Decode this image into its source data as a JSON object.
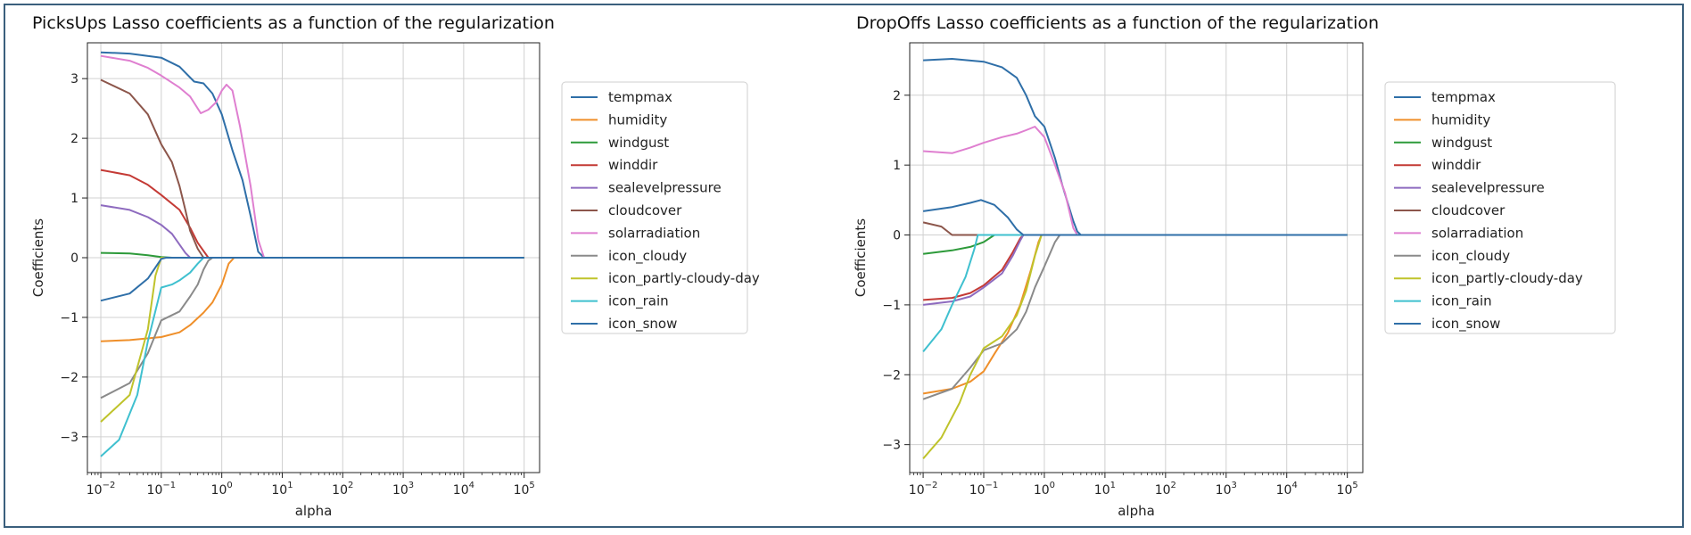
{
  "colors": {
    "tempmax": "#2f6fa8",
    "humidity": "#ef8f2a",
    "windgust": "#2d9a3a",
    "winddir": "#c43a35",
    "sealevelpressure": "#8e6bbf",
    "cloudcover": "#8c564b",
    "solarradiation": "#df7fd0",
    "icon_cloudy": "#8a8a8a",
    "icon_partly-cloudy-day": "#bfc32b",
    "icon_rain": "#3fc0cf",
    "icon_snow": "#2f6fa8"
  },
  "chart_data": [
    {
      "type": "line",
      "title": "PicksUps Lasso coefficients as a function of the regularization",
      "xlabel": "alpha",
      "ylabel": "Coefficients",
      "xscale": "log",
      "xlim": [
        0.006,
        180000
      ],
      "ylim": [
        -3.6,
        3.6
      ],
      "xticks": [
        "10^-2",
        "10^-1",
        "10^0",
        "10^1",
        "10^2",
        "10^3",
        "10^4",
        "10^5"
      ],
      "yticks": [
        -3,
        -2,
        -1,
        0,
        1,
        2,
        3
      ],
      "grid": true,
      "legend_position": "right",
      "legend": [
        "tempmax",
        "humidity",
        "windgust",
        "winddir",
        "sealevelpressure",
        "cloudcover",
        "solarradiation",
        "icon_cloudy",
        "icon_partly-cloudy-day",
        "icon_rain",
        "icon_snow"
      ],
      "series": [
        {
          "name": "tempmax",
          "points": [
            [
              0.01,
              3.44
            ],
            [
              0.03,
              3.42
            ],
            [
              0.1,
              3.35
            ],
            [
              0.2,
              3.2
            ],
            [
              0.35,
              2.95
            ],
            [
              0.5,
              2.92
            ],
            [
              0.7,
              2.75
            ],
            [
              1,
              2.4
            ],
            [
              1.5,
              1.8
            ],
            [
              2.2,
              1.3
            ],
            [
              3,
              0.7
            ],
            [
              4,
              0.1
            ],
            [
              5,
              0
            ],
            [
              100000,
              0
            ]
          ]
        },
        {
          "name": "humidity",
          "points": [
            [
              0.01,
              -1.4
            ],
            [
              0.03,
              -1.38
            ],
            [
              0.1,
              -1.33
            ],
            [
              0.2,
              -1.25
            ],
            [
              0.3,
              -1.13
            ],
            [
              0.5,
              -0.92
            ],
            [
              0.7,
              -0.75
            ],
            [
              1,
              -0.45
            ],
            [
              1.3,
              -0.1
            ],
            [
              1.6,
              0
            ],
            [
              100000,
              0
            ]
          ]
        },
        {
          "name": "windgust",
          "points": [
            [
              0.01,
              0.08
            ],
            [
              0.03,
              0.07
            ],
            [
              0.06,
              0.04
            ],
            [
              0.1,
              0.01
            ],
            [
              0.15,
              0
            ],
            [
              100000,
              0
            ]
          ]
        },
        {
          "name": "winddir",
          "points": [
            [
              0.01,
              1.47
            ],
            [
              0.03,
              1.38
            ],
            [
              0.06,
              1.22
            ],
            [
              0.1,
              1.05
            ],
            [
              0.2,
              0.8
            ],
            [
              0.3,
              0.5
            ],
            [
              0.4,
              0.25
            ],
            [
              0.6,
              0
            ],
            [
              100000,
              0
            ]
          ]
        },
        {
          "name": "sealevelpressure",
          "points": [
            [
              0.01,
              0.88
            ],
            [
              0.03,
              0.8
            ],
            [
              0.06,
              0.68
            ],
            [
              0.1,
              0.55
            ],
            [
              0.15,
              0.4
            ],
            [
              0.25,
              0.08
            ],
            [
              0.3,
              0
            ],
            [
              100000,
              0
            ]
          ]
        },
        {
          "name": "cloudcover",
          "points": [
            [
              0.01,
              2.98
            ],
            [
              0.03,
              2.75
            ],
            [
              0.06,
              2.4
            ],
            [
              0.1,
              1.9
            ],
            [
              0.15,
              1.6
            ],
            [
              0.2,
              1.2
            ],
            [
              0.25,
              0.8
            ],
            [
              0.3,
              0.45
            ],
            [
              0.4,
              0.15
            ],
            [
              0.5,
              0
            ],
            [
              100000,
              0
            ]
          ]
        },
        {
          "name": "solarradiation",
          "points": [
            [
              0.01,
              3.38
            ],
            [
              0.03,
              3.3
            ],
            [
              0.06,
              3.18
            ],
            [
              0.1,
              3.05
            ],
            [
              0.2,
              2.85
            ],
            [
              0.3,
              2.7
            ],
            [
              0.45,
              2.42
            ],
            [
              0.6,
              2.48
            ],
            [
              0.8,
              2.6
            ],
            [
              1,
              2.8
            ],
            [
              1.2,
              2.9
            ],
            [
              1.5,
              2.8
            ],
            [
              2,
              2.2
            ],
            [
              3,
              1.2
            ],
            [
              4,
              0.3
            ],
            [
              5,
              0
            ],
            [
              100000,
              0
            ]
          ]
        },
        {
          "name": "icon_cloudy",
          "points": [
            [
              0.01,
              -2.35
            ],
            [
              0.03,
              -2.1
            ],
            [
              0.06,
              -1.6
            ],
            [
              0.1,
              -1.05
            ],
            [
              0.2,
              -0.9
            ],
            [
              0.3,
              -0.65
            ],
            [
              0.4,
              -0.45
            ],
            [
              0.5,
              -0.2
            ],
            [
              0.6,
              -0.05
            ],
            [
              0.7,
              0
            ],
            [
              100000,
              0
            ]
          ]
        },
        {
          "name": "icon_partly-cloudy-day",
          "points": [
            [
              0.01,
              -2.75
            ],
            [
              0.03,
              -2.3
            ],
            [
              0.06,
              -1.2
            ],
            [
              0.08,
              -0.3
            ],
            [
              0.1,
              0
            ],
            [
              100000,
              0
            ]
          ]
        },
        {
          "name": "icon_rain",
          "points": [
            [
              0.01,
              -3.33
            ],
            [
              0.02,
              -3.05
            ],
            [
              0.04,
              -2.3
            ],
            [
              0.06,
              -1.4
            ],
            [
              0.1,
              -0.5
            ],
            [
              0.15,
              -0.45
            ],
            [
              0.2,
              -0.38
            ],
            [
              0.3,
              -0.25
            ],
            [
              0.4,
              -0.1
            ],
            [
              0.5,
              0
            ],
            [
              100000,
              0
            ]
          ]
        },
        {
          "name": "icon_snow",
          "points": [
            [
              0.01,
              -0.72
            ],
            [
              0.03,
              -0.6
            ],
            [
              0.06,
              -0.35
            ],
            [
              0.1,
              -0.02
            ],
            [
              0.12,
              0
            ],
            [
              100000,
              0
            ]
          ]
        }
      ]
    },
    {
      "type": "line",
      "title": "DropOffs Lasso coefficients as a function of the regularization",
      "xlabel": "alpha",
      "ylabel": "Coefficients",
      "xscale": "log",
      "xlim": [
        0.006,
        180000
      ],
      "ylim": [
        -3.4,
        2.75
      ],
      "xticks": [
        "10^-2",
        "10^-1",
        "10^0",
        "10^1",
        "10^2",
        "10^3",
        "10^4",
        "10^5"
      ],
      "yticks": [
        -3,
        -2,
        -1,
        0,
        1,
        2
      ],
      "grid": true,
      "legend_position": "right",
      "legend": [
        "tempmax",
        "humidity",
        "windgust",
        "winddir",
        "sealevelpressure",
        "cloudcover",
        "solarradiation",
        "icon_cloudy",
        "icon_partly-cloudy-day",
        "icon_rain",
        "icon_snow"
      ],
      "series": [
        {
          "name": "tempmax",
          "points": [
            [
              0.01,
              2.5
            ],
            [
              0.03,
              2.52
            ],
            [
              0.1,
              2.48
            ],
            [
              0.2,
              2.4
            ],
            [
              0.35,
              2.25
            ],
            [
              0.5,
              2.0
            ],
            [
              0.7,
              1.7
            ],
            [
              1,
              1.55
            ],
            [
              1.5,
              1.1
            ],
            [
              2,
              0.7
            ],
            [
              3,
              0.2
            ],
            [
              3.5,
              0.05
            ],
            [
              4,
              0
            ],
            [
              100000,
              0
            ]
          ]
        },
        {
          "name": "humidity",
          "points": [
            [
              0.01,
              -2.27
            ],
            [
              0.03,
              -2.2
            ],
            [
              0.06,
              -2.1
            ],
            [
              0.1,
              -1.95
            ],
            [
              0.15,
              -1.7
            ],
            [
              0.25,
              -1.4
            ],
            [
              0.4,
              -1.0
            ],
            [
              0.6,
              -0.5
            ],
            [
              0.8,
              -0.1
            ],
            [
              0.9,
              0
            ],
            [
              100000,
              0
            ]
          ]
        },
        {
          "name": "windgust",
          "points": [
            [
              0.01,
              -0.27
            ],
            [
              0.03,
              -0.22
            ],
            [
              0.06,
              -0.17
            ],
            [
              0.1,
              -0.1
            ],
            [
              0.15,
              0
            ],
            [
              100000,
              0
            ]
          ]
        },
        {
          "name": "winddir",
          "points": [
            [
              0.01,
              -0.93
            ],
            [
              0.03,
              -0.9
            ],
            [
              0.06,
              -0.83
            ],
            [
              0.1,
              -0.72
            ],
            [
              0.2,
              -0.5
            ],
            [
              0.3,
              -0.25
            ],
            [
              0.4,
              -0.05
            ],
            [
              0.45,
              0
            ],
            [
              100000,
              0
            ]
          ]
        },
        {
          "name": "sealevelpressure",
          "points": [
            [
              0.01,
              -1.0
            ],
            [
              0.03,
              -0.95
            ],
            [
              0.06,
              -0.88
            ],
            [
              0.1,
              -0.75
            ],
            [
              0.2,
              -0.55
            ],
            [
              0.3,
              -0.3
            ],
            [
              0.4,
              -0.08
            ],
            [
              0.45,
              0
            ],
            [
              100000,
              0
            ]
          ]
        },
        {
          "name": "cloudcover",
          "points": [
            [
              0.01,
              0.18
            ],
            [
              0.02,
              0.12
            ],
            [
              0.03,
              0
            ],
            [
              100000,
              0
            ]
          ]
        },
        {
          "name": "solarradiation",
          "points": [
            [
              0.01,
              1.2
            ],
            [
              0.03,
              1.17
            ],
            [
              0.06,
              1.25
            ],
            [
              0.1,
              1.32
            ],
            [
              0.2,
              1.4
            ],
            [
              0.35,
              1.45
            ],
            [
              0.5,
              1.5
            ],
            [
              0.7,
              1.55
            ],
            [
              1,
              1.4
            ],
            [
              1.5,
              1.0
            ],
            [
              2.2,
              0.6
            ],
            [
              3,
              0.1
            ],
            [
              3.5,
              0
            ],
            [
              100000,
              0
            ]
          ]
        },
        {
          "name": "icon_cloudy",
          "points": [
            [
              0.01,
              -2.35
            ],
            [
              0.03,
              -2.2
            ],
            [
              0.06,
              -1.9
            ],
            [
              0.1,
              -1.65
            ],
            [
              0.2,
              -1.55
            ],
            [
              0.35,
              -1.35
            ],
            [
              0.5,
              -1.1
            ],
            [
              0.7,
              -0.75
            ],
            [
              1,
              -0.45
            ],
            [
              1.5,
              -0.1
            ],
            [
              1.8,
              0
            ],
            [
              100000,
              0
            ]
          ]
        },
        {
          "name": "icon_partly-cloudy-day",
          "points": [
            [
              0.01,
              -3.2
            ],
            [
              0.02,
              -2.9
            ],
            [
              0.04,
              -2.4
            ],
            [
              0.06,
              -2.0
            ],
            [
              0.1,
              -1.62
            ],
            [
              0.2,
              -1.45
            ],
            [
              0.35,
              -1.15
            ],
            [
              0.5,
              -0.8
            ],
            [
              0.7,
              -0.3
            ],
            [
              0.9,
              0
            ],
            [
              100000,
              0
            ]
          ]
        },
        {
          "name": "icon_rain",
          "points": [
            [
              0.01,
              -1.67
            ],
            [
              0.02,
              -1.35
            ],
            [
              0.03,
              -1.0
            ],
            [
              0.05,
              -0.6
            ],
            [
              0.07,
              -0.2
            ],
            [
              0.08,
              0
            ],
            [
              100000,
              0
            ]
          ]
        },
        {
          "name": "icon_snow",
          "points": [
            [
              0.01,
              0.34
            ],
            [
              0.03,
              0.4
            ],
            [
              0.06,
              0.46
            ],
            [
              0.09,
              0.5
            ],
            [
              0.15,
              0.43
            ],
            [
              0.25,
              0.25
            ],
            [
              0.35,
              0.08
            ],
            [
              0.45,
              0
            ],
            [
              100000,
              0
            ]
          ]
        }
      ]
    }
  ]
}
